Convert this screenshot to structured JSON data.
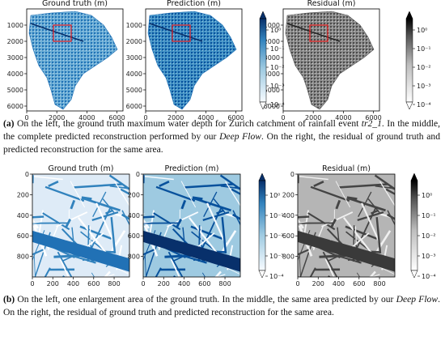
{
  "figure_a": {
    "panels": [
      {
        "title": "Ground truth (m)"
      },
      {
        "title": "Prediction (m)"
      },
      {
        "title": "Residual (m)"
      }
    ],
    "xlim": [
      0,
      6400
    ],
    "ylim": [
      0,
      6300
    ],
    "xticks": [
      0,
      2000,
      4000,
      6000
    ],
    "yticks": [
      1000,
      2000,
      3000,
      4000,
      5000,
      6000
    ],
    "colorbar_ticks": [
      "10⁰",
      "10⁻¹",
      "10⁻²",
      "10⁻³",
      "10⁻⁴"
    ],
    "caption": {
      "label": "(a)",
      "parts": [
        "On the left, the ground truth maximum water depth for Zurich catchment of rainfall event ",
        "tr2_1",
        ". In the middle, the complete predicted reconstruction performed by our ",
        "Deep Flow",
        ". On the right, the residual of ground truth and predicted reconstruction for the same area."
      ]
    }
  },
  "figure_b": {
    "panels": [
      {
        "title": "Ground truth (m)"
      },
      {
        "title": "Prediction (m)"
      },
      {
        "title": "Residual (m)"
      }
    ],
    "xlim": [
      0,
      950
    ],
    "ylim": [
      0,
      1000
    ],
    "xticks": [
      0,
      200,
      400,
      600,
      800
    ],
    "yticks": [
      0,
      200,
      400,
      600,
      800
    ],
    "colorbar_ticks": [
      "10⁰",
      "10⁻¹",
      "10⁻²",
      "10⁻³",
      "10⁻⁴"
    ],
    "caption": {
      "label": "(b)",
      "parts": [
        "On the left, one enlargement area of the ground truth. In the middle, the same area predicted by our ",
        "Deep Flow",
        ". On the right, the residual of ground truth and predicted reconstruction for the same area."
      ]
    }
  }
}
